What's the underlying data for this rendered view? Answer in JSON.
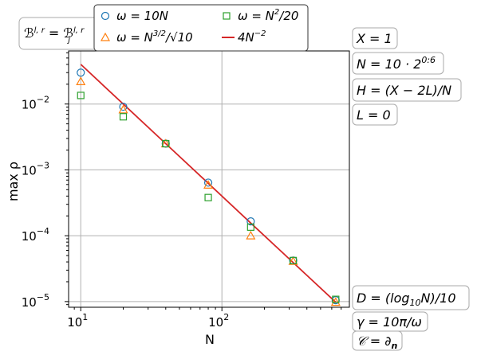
{
  "chart_data": {
    "type": "scatter",
    "title": "",
    "xlabel": "N",
    "ylabel": "max ρ",
    "xscale": "log",
    "yscale": "log",
    "xlim": [
      8.2,
      800
    ],
    "ylim": [
      8.2e-06,
      0.064
    ],
    "grid": true,
    "legend_position": "top",
    "x_ticks": [
      {
        "value": 10,
        "label": "10",
        "exp": "1"
      },
      {
        "value": 100,
        "label": "10",
        "exp": "2"
      }
    ],
    "y_ticks": [
      {
        "value": 1e-05,
        "label": "10",
        "exp": "−5"
      },
      {
        "value": 0.0001,
        "label": "10",
        "exp": "−4"
      },
      {
        "value": 0.001,
        "label": "10",
        "exp": "−3"
      },
      {
        "value": 0.01,
        "label": "10",
        "exp": "−2"
      }
    ],
    "x": [
      10,
      20,
      40,
      80,
      160,
      320,
      640
    ],
    "series": [
      {
        "name": "ω = 10N",
        "marker": "circle",
        "color": "#1f77b4",
        "values": [
          0.03,
          0.0091,
          0.0025,
          0.00064,
          0.000165,
          4.2e-05,
          1.05e-05
        ]
      },
      {
        "name": "ω = N^{3/2}/√10",
        "marker": "triangle",
        "color": "#ff7f0e",
        "values": [
          0.022,
          0.0082,
          0.0025,
          0.00059,
          0.0001,
          4.1e-05,
          9.8e-06
        ]
      },
      {
        "name": "ω = N²/20",
        "marker": "square",
        "color": "#2ca02c",
        "values": [
          0.0135,
          0.0064,
          0.0025,
          0.00038,
          0.000135,
          4.2e-05,
          1.08e-05
        ]
      },
      {
        "name": "4N^{−2}",
        "marker": "line",
        "color": "#d62728",
        "values": [
          0.04,
          0.01,
          0.0025,
          0.000625,
          0.000156,
          3.91e-05,
          9.77e-06
        ]
      }
    ],
    "legend": [
      {
        "prefix": "ω = ",
        "main": "10N",
        "sup": "",
        "suffix": "",
        "marker": "circle",
        "color": "#1f77b4"
      },
      {
        "prefix": "ω = ",
        "main": "N",
        "sup": "3/2",
        "suffix": "/√10",
        "marker": "triangle",
        "color": "#ff7f0e"
      },
      {
        "prefix": "ω = ",
        "main": "N",
        "sup": "2",
        "suffix": "/20",
        "marker": "square",
        "color": "#2ca02c"
      },
      {
        "prefix": "",
        "main": "4N",
        "sup": "−2",
        "suffix": "",
        "marker": "line",
        "color": "#d62728"
      }
    ],
    "annotations": {
      "boundary": "ℬ^{l,r} = ℬ_j^{l,r}",
      "x_param": "X = 1",
      "n_param": "N = 10 · 2^{0:6}",
      "h_param": "H = (X − 2L)/N",
      "l_param": "L = 0",
      "d_param": "D = (log₁₀N)/10",
      "gamma_param": "γ = 10π/ω",
      "c_param": "𝒞 = ∂ₙ"
    }
  }
}
